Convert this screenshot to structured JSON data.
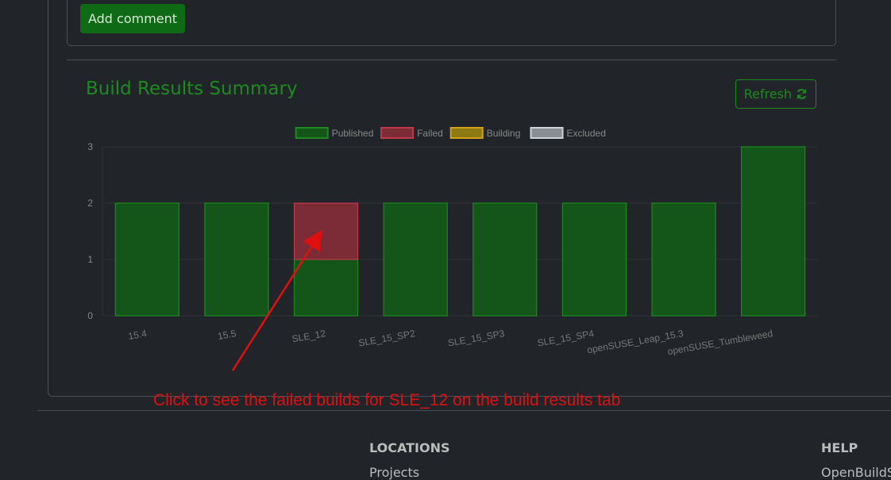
{
  "add_button": "Add comment",
  "section": {
    "title": "Build Results Summary",
    "refresh": "Refresh"
  },
  "chart_data": {
    "type": "stacked-bar",
    "categories": [
      "15.4",
      "15.5",
      "SLE_12",
      "SLE_15_SP2",
      "SLE_15_SP3",
      "SLE_15_SP4",
      "openSUSE_Leap_15.3",
      "openSUSE_Tumbleweed"
    ],
    "series": [
      {
        "name": "Published",
        "color": "#14561a",
        "values": [
          2,
          2,
          1,
          2,
          2,
          2,
          2,
          3
        ]
      },
      {
        "name": "Failed",
        "color": "#7b2c36",
        "values": [
          0,
          0,
          1,
          0,
          0,
          0,
          0,
          0
        ]
      },
      {
        "name": "Building",
        "color": "#8c7a12",
        "values": [
          0,
          0,
          0,
          0,
          0,
          0,
          0,
          0
        ]
      },
      {
        "name": "Excluded",
        "color": "#8a8e95",
        "values": [
          0,
          0,
          0,
          0,
          0,
          0,
          0,
          0
        ]
      }
    ],
    "ylim": [
      0,
      3
    ],
    "yticks": [
      0,
      1,
      2,
      3
    ],
    "grid": true,
    "legend": "top"
  },
  "annotation": "Click to see the failed builds for SLE_12 on the build results tab",
  "footer": {
    "locations": {
      "heading": "LOCATIONS",
      "link": "Projects"
    },
    "help": {
      "heading": "HELP",
      "link": "OpenBuildService"
    }
  }
}
